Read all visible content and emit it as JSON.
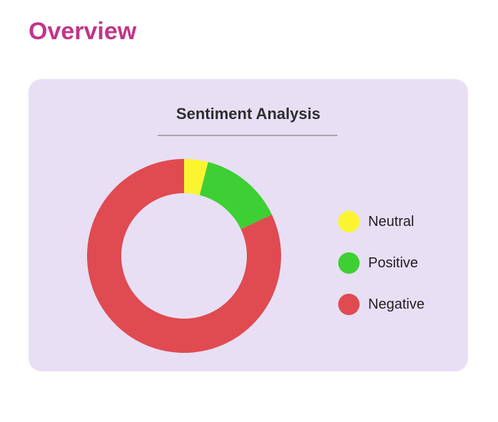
{
  "page": {
    "title": "Overview"
  },
  "card": {
    "title": "Sentiment Analysis"
  },
  "chart_data": {
    "type": "pie",
    "variant": "donut",
    "title": "Sentiment Analysis",
    "categories": [
      "Neutral",
      "Positive",
      "Negative"
    ],
    "values": [
      4,
      14,
      82
    ],
    "colors": [
      "#fbf531",
      "#3ecf34",
      "#df4b51"
    ],
    "legend": "right",
    "start_angle_deg": 0,
    "direction": "clockwise"
  }
}
